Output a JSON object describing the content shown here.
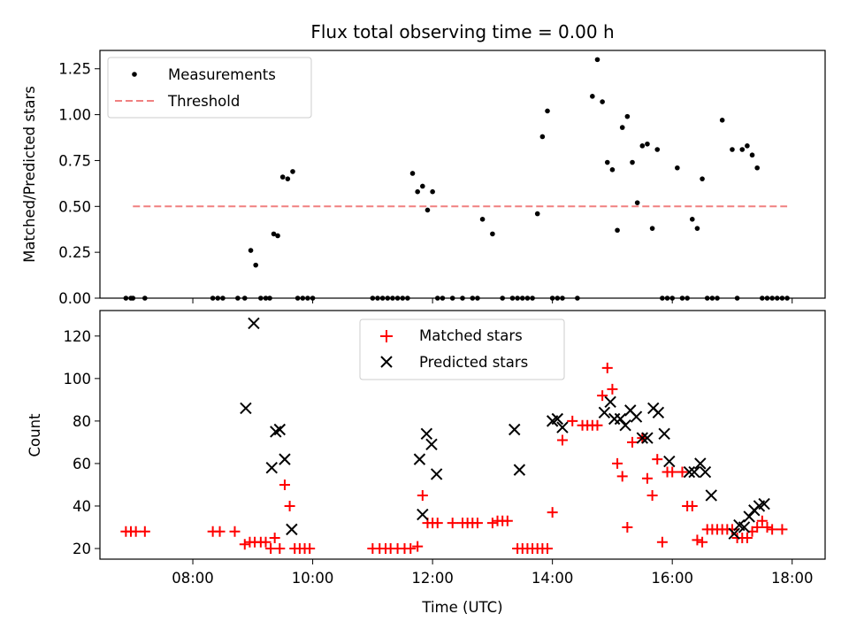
{
  "title": "Flux total observing time = 0.00 h",
  "colors": {
    "measurement": "#000000",
    "threshold": "#f08080",
    "matched": "#ff0000",
    "predicted": "#000000"
  },
  "chart_data": [
    {
      "type": "scatter",
      "ylabel": "Matched/Predicted stars",
      "xlim": [
        "06:27",
        "18:33"
      ],
      "ylim": [
        0,
        1.35
      ],
      "yticks": [
        0,
        0.25,
        0.5,
        0.75,
        1.0,
        1.25
      ],
      "ytick_labels": [
        "0.00",
        "0.25",
        "0.50",
        "0.75",
        "1.00",
        "1.25"
      ],
      "grid": false,
      "legend": "upper left",
      "series": [
        {
          "name": "Measurements",
          "kind": "scatter",
          "x": [
            "06:53",
            "06:58",
            "07:00",
            "07:12",
            "08:20",
            "08:25",
            "08:30",
            "08:45",
            "08:52",
            "08:58",
            "09:03",
            "09:08",
            "09:13",
            "09:17",
            "09:21",
            "09:25",
            "09:30",
            "09:35",
            "09:40",
            "09:45",
            "09:50",
            "09:55",
            "10:00",
            "11:00",
            "11:05",
            "11:10",
            "11:15",
            "11:20",
            "11:25",
            "11:30",
            "11:35",
            "11:40",
            "11:45",
            "11:50",
            "11:55",
            "12:00",
            "12:05",
            "12:10",
            "12:20",
            "12:30",
            "12:40",
            "12:45",
            "12:50",
            "13:00",
            "13:10",
            "13:20",
            "13:25",
            "13:30",
            "13:35",
            "13:40",
            "13:45",
            "13:50",
            "13:55",
            "14:00",
            "14:05",
            "14:10",
            "14:25",
            "14:40",
            "14:45",
            "14:50",
            "14:55",
            "15:00",
            "15:05",
            "15:10",
            "15:15",
            "15:20",
            "15:25",
            "15:30",
            "15:35",
            "15:40",
            "15:45",
            "15:50",
            "15:55",
            "16:00",
            "16:05",
            "16:10",
            "16:15",
            "16:20",
            "16:25",
            "16:30",
            "16:35",
            "16:40",
            "16:45",
            "16:50",
            "17:00",
            "17:05",
            "17:10",
            "17:15",
            "17:20",
            "17:25",
            "17:30",
            "17:35",
            "17:40",
            "17:45",
            "17:50",
            "17:55"
          ],
          "y": [
            0,
            0,
            0,
            0,
            0,
            0,
            0,
            0,
            0,
            0.26,
            0.18,
            0,
            0,
            0,
            0.35,
            0.34,
            0.66,
            0.65,
            0.69,
            0,
            0,
            0,
            0,
            0,
            0,
            0,
            0,
            0,
            0,
            0,
            0,
            0.68,
            0.58,
            0.61,
            0.48,
            0.58,
            0,
            0,
            0,
            0,
            0,
            0,
            0.43,
            0.35,
            0,
            0,
            0,
            0,
            0,
            0,
            0.46,
            0.88,
            1.02,
            0,
            0,
            0,
            0,
            1.1,
            1.3,
            1.07,
            0.74,
            0.7,
            0.37,
            0.93,
            0.99,
            0.74,
            0.52,
            0.83,
            0.84,
            0.38,
            0.81,
            0,
            0,
            0,
            0.71,
            0,
            0,
            0.43,
            0.38,
            0.65,
            0,
            0,
            0,
            0.97,
            0.81,
            0,
            0.81,
            0.83,
            0.78,
            0.71,
            0,
            0,
            0,
            0,
            0,
            0
          ]
        },
        {
          "name": "Threshold",
          "kind": "line",
          "style": "dashed",
          "x": [
            "07:00",
            "17:55"
          ],
          "y": [
            0.5,
            0.5
          ]
        }
      ]
    },
    {
      "type": "scatter",
      "xlabel": "Time (UTC)",
      "ylabel": "Count",
      "xlim": [
        "06:27",
        "18:33"
      ],
      "xticks": [
        "08:00",
        "10:00",
        "12:00",
        "14:00",
        "16:00",
        "18:00"
      ],
      "ylim": [
        15,
        132
      ],
      "yticks": [
        20,
        40,
        60,
        80,
        100,
        120
      ],
      "grid": false,
      "legend": "upper center",
      "series": [
        {
          "name": "Matched stars",
          "marker": "+",
          "x": [
            "06:53",
            "06:58",
            "07:03",
            "07:12",
            "08:20",
            "08:27",
            "08:42",
            "08:52",
            "08:57",
            "09:02",
            "09:08",
            "09:13",
            "09:18",
            "09:22",
            "09:27",
            "09:32",
            "09:37",
            "09:42",
            "09:47",
            "09:52",
            "09:57",
            "11:00",
            "11:07",
            "11:13",
            "11:18",
            "11:25",
            "11:32",
            "11:38",
            "11:45",
            "11:50",
            "11:55",
            "12:00",
            "12:05",
            "12:20",
            "12:30",
            "12:35",
            "12:40",
            "12:45",
            "13:00",
            "13:05",
            "13:10",
            "13:15",
            "13:25",
            "13:30",
            "13:35",
            "13:40",
            "13:45",
            "13:50",
            "13:55",
            "14:00",
            "14:10",
            "14:20",
            "14:30",
            "14:35",
            "14:40",
            "14:45",
            "14:50",
            "14:55",
            "15:00",
            "15:05",
            "15:10",
            "15:15",
            "15:20",
            "15:30",
            "15:35",
            "15:40",
            "15:45",
            "15:50",
            "15:55",
            "16:00",
            "16:10",
            "16:15",
            "16:20",
            "16:25",
            "16:30",
            "16:35",
            "16:40",
            "16:45",
            "16:50",
            "16:55",
            "17:00",
            "17:05",
            "17:10",
            "17:15",
            "17:20",
            "17:25",
            "17:30",
            "17:35",
            "17:40",
            "17:50"
          ],
          "y": [
            28,
            28,
            28,
            28,
            28,
            28,
            28,
            22,
            23,
            23,
            23,
            23,
            20,
            25,
            20,
            50,
            40,
            20,
            20,
            20,
            20,
            20,
            20,
            20,
            20,
            20,
            20,
            20,
            21,
            45,
            32,
            32,
            32,
            32,
            32,
            32,
            32,
            32,
            32,
            33,
            33,
            33,
            20,
            20,
            20,
            20,
            20,
            20,
            20,
            37,
            71,
            80,
            78,
            78,
            78,
            78,
            92,
            105,
            95,
            60,
            54,
            30,
            70,
            72,
            53,
            45,
            62,
            23,
            56,
            56,
            56,
            40,
            40,
            24,
            23,
            29,
            29,
            29,
            29,
            29,
            29,
            25,
            25,
            25,
            28,
            30,
            33,
            30,
            29,
            29
          ]
        },
        {
          "name": "Predicted stars",
          "marker": "x",
          "x": [
            "08:53",
            "09:01",
            "09:19",
            "09:23",
            "09:27",
            "09:32",
            "09:39",
            "11:47",
            "11:50",
            "11:54",
            "11:59",
            "12:04",
            "13:22",
            "13:27",
            "14:00",
            "14:05",
            "14:10",
            "14:52",
            "14:58",
            "15:02",
            "15:08",
            "15:13",
            "15:18",
            "15:24",
            "15:30",
            "15:35",
            "15:41",
            "15:46",
            "15:52",
            "15:57",
            "16:17",
            "16:22",
            "16:28",
            "16:33",
            "16:39",
            "17:02",
            "17:07",
            "17:12",
            "17:17",
            "17:22",
            "17:27",
            "17:32"
          ],
          "y": [
            86,
            126,
            58,
            75,
            76,
            62,
            29,
            62,
            36,
            74,
            69,
            55,
            76,
            57,
            80,
            81,
            77,
            84,
            89,
            81,
            81,
            78,
            85,
            82,
            72,
            72,
            86,
            84,
            74,
            61,
            56,
            56,
            60,
            56,
            45,
            27,
            31,
            30,
            35,
            38,
            40,
            41
          ]
        }
      ]
    }
  ]
}
